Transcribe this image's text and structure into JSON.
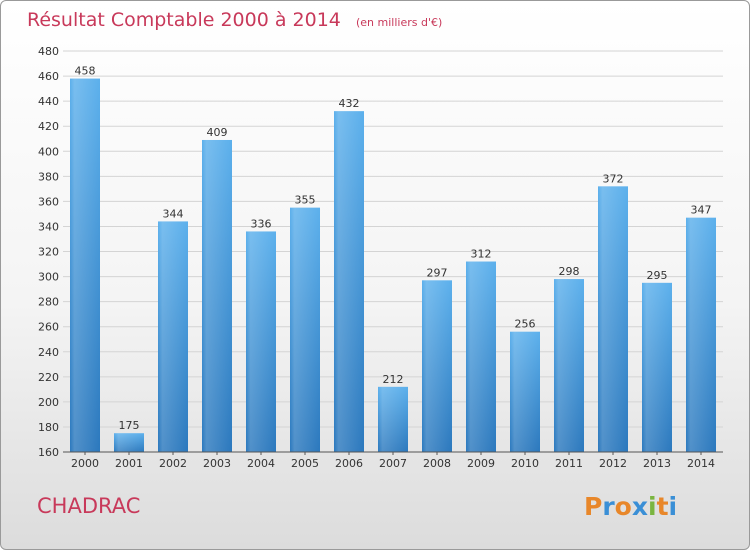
{
  "chart_data": {
    "type": "bar",
    "title": "Résultat Comptable 2000 à 2014",
    "subtitle": "(en milliers d'€)",
    "categories": [
      "2000",
      "2001",
      "2002",
      "2003",
      "2004",
      "2005",
      "2006",
      "2007",
      "2008",
      "2009",
      "2010",
      "2011",
      "2012",
      "2013",
      "2014"
    ],
    "values": [
      458,
      175,
      344,
      409,
      336,
      355,
      432,
      212,
      297,
      312,
      256,
      298,
      372,
      295,
      347
    ],
    "ylim": [
      160,
      480
    ],
    "yticks": [
      160,
      180,
      200,
      220,
      240,
      260,
      280,
      300,
      320,
      340,
      360,
      380,
      400,
      420,
      440,
      460,
      480
    ],
    "xlabel": "",
    "ylabel": "",
    "grid": true,
    "bar_color": "#3a8fd6",
    "title_color": "#c8395a"
  },
  "footer": {
    "town": "CHADRAC",
    "logo_letters": [
      "P",
      "r",
      "o",
      "x",
      "i",
      "t",
      "i"
    ],
    "logo_colors": [
      "#e8872a",
      "#3a8fd6",
      "#e8872a",
      "#3a8fd6",
      "#7ab540",
      "#e8872a",
      "#3a8fd6"
    ]
  }
}
